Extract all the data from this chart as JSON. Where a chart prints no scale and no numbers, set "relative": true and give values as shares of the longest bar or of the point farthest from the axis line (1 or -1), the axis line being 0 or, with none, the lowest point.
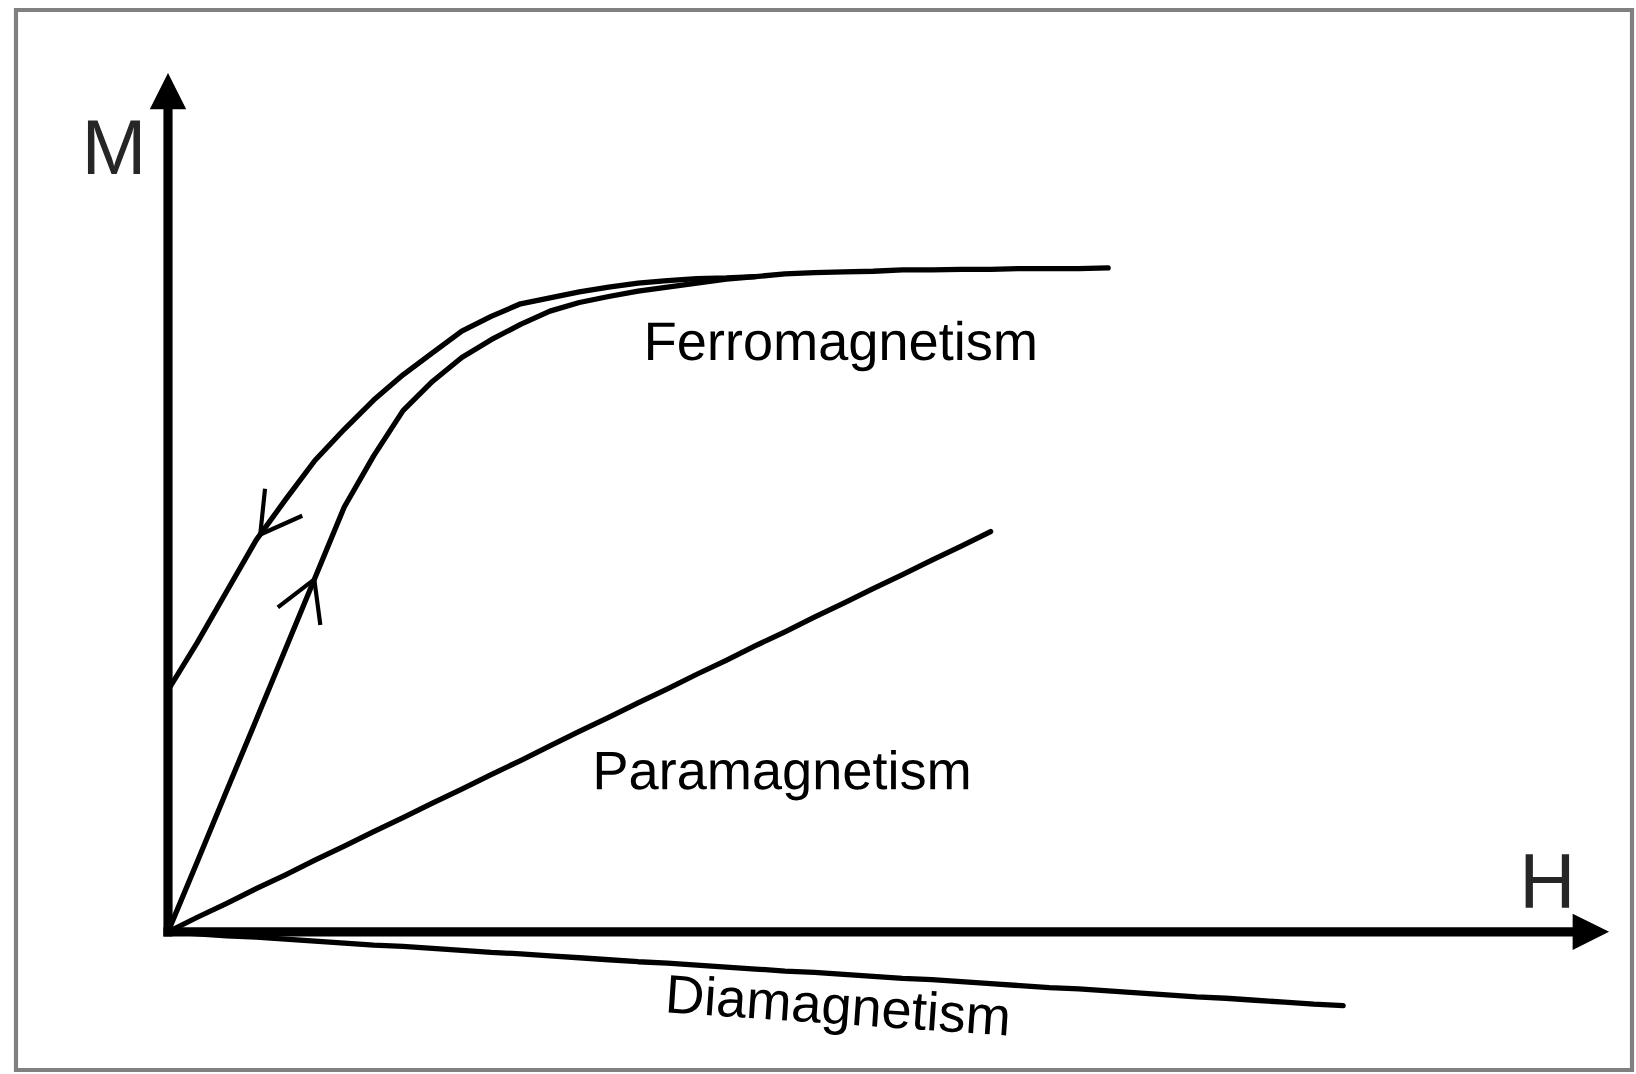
{
  "chart_data": {
    "type": "line",
    "relative": true,
    "xlabel": "H",
    "ylabel": "M",
    "tick_labels": false,
    "categories": [
      null,
      null,
      null,
      null,
      null,
      null,
      null,
      null,
      null,
      null,
      null,
      null,
      null,
      null,
      null,
      null,
      null,
      null,
      null,
      null,
      null,
      null,
      null,
      null,
      null,
      null,
      null,
      null,
      null,
      null,
      null,
      null,
      null,
      null,
      null,
      null,
      null,
      null,
      null,
      null,
      null
    ],
    "series": [
      {
        "color": "#000000",
        "values": [
          0.364,
          0.436,
          0.513,
          0.59,
          0.651,
          0.71,
          0.757,
          0.801,
          0.839,
          0.872,
          0.905,
          0.927,
          0.946,
          0.955,
          0.964,
          0.971,
          0.977,
          0.981,
          0.984,
          0.985,
          0.987,
          null,
          null,
          null,
          null,
          null,
          null,
          null,
          null,
          null,
          null,
          null,
          null,
          null,
          null,
          null,
          null,
          null,
          null,
          null,
          null
        ]
      },
      {
        "name": "Ferromagnetism",
        "color": "#000000",
        "values": [
          0,
          0.106,
          0.213,
          0.319,
          0.426,
          0.533,
          0.64,
          0.717,
          0.785,
          0.829,
          0.865,
          0.892,
          0.915,
          0.935,
          0.948,
          0.957,
          0.965,
          0.971,
          0.977,
          0.983,
          0.987,
          0.991,
          0.993,
          0.994,
          0.995,
          0.997,
          0.997,
          0.998,
          0.998,
          0.999,
          0.999,
          0.999,
          1.0,
          null,
          null,
          null,
          null,
          null,
          null,
          null,
          null
        ]
      },
      {
        "name": "Paramagnetism",
        "color": "#000000",
        "values": [
          0,
          0.022,
          0.043,
          0.065,
          0.086,
          0.108,
          0.129,
          0.151,
          0.172,
          0.194,
          0.215,
          0.237,
          0.258,
          0.28,
          0.302,
          0.323,
          0.345,
          0.366,
          0.388,
          0.409,
          0.431,
          0.452,
          0.474,
          0.495,
          0.517,
          0.538,
          0.56,
          0.581,
          0.603,
          null,
          null,
          null,
          null,
          null,
          null,
          null,
          null,
          null,
          null,
          null,
          null
        ]
      },
      {
        "name": "Diamagnetism",
        "color": "#000000",
        "values": [
          0,
          -0.003,
          -0.006,
          -0.008,
          -0.011,
          -0.014,
          -0.017,
          -0.02,
          -0.022,
          -0.025,
          -0.028,
          -0.031,
          -0.033,
          -0.036,
          -0.039,
          -0.042,
          -0.045,
          -0.047,
          -0.05,
          -0.053,
          -0.056,
          -0.059,
          -0.061,
          -0.064,
          -0.067,
          -0.07,
          -0.072,
          -0.075,
          -0.078,
          -0.081,
          -0.084,
          -0.086,
          -0.089,
          -0.092,
          -0.095,
          -0.098,
          -0.1,
          -0.103,
          -0.106,
          -0.109,
          -0.111
        ]
      }
    ]
  }
}
